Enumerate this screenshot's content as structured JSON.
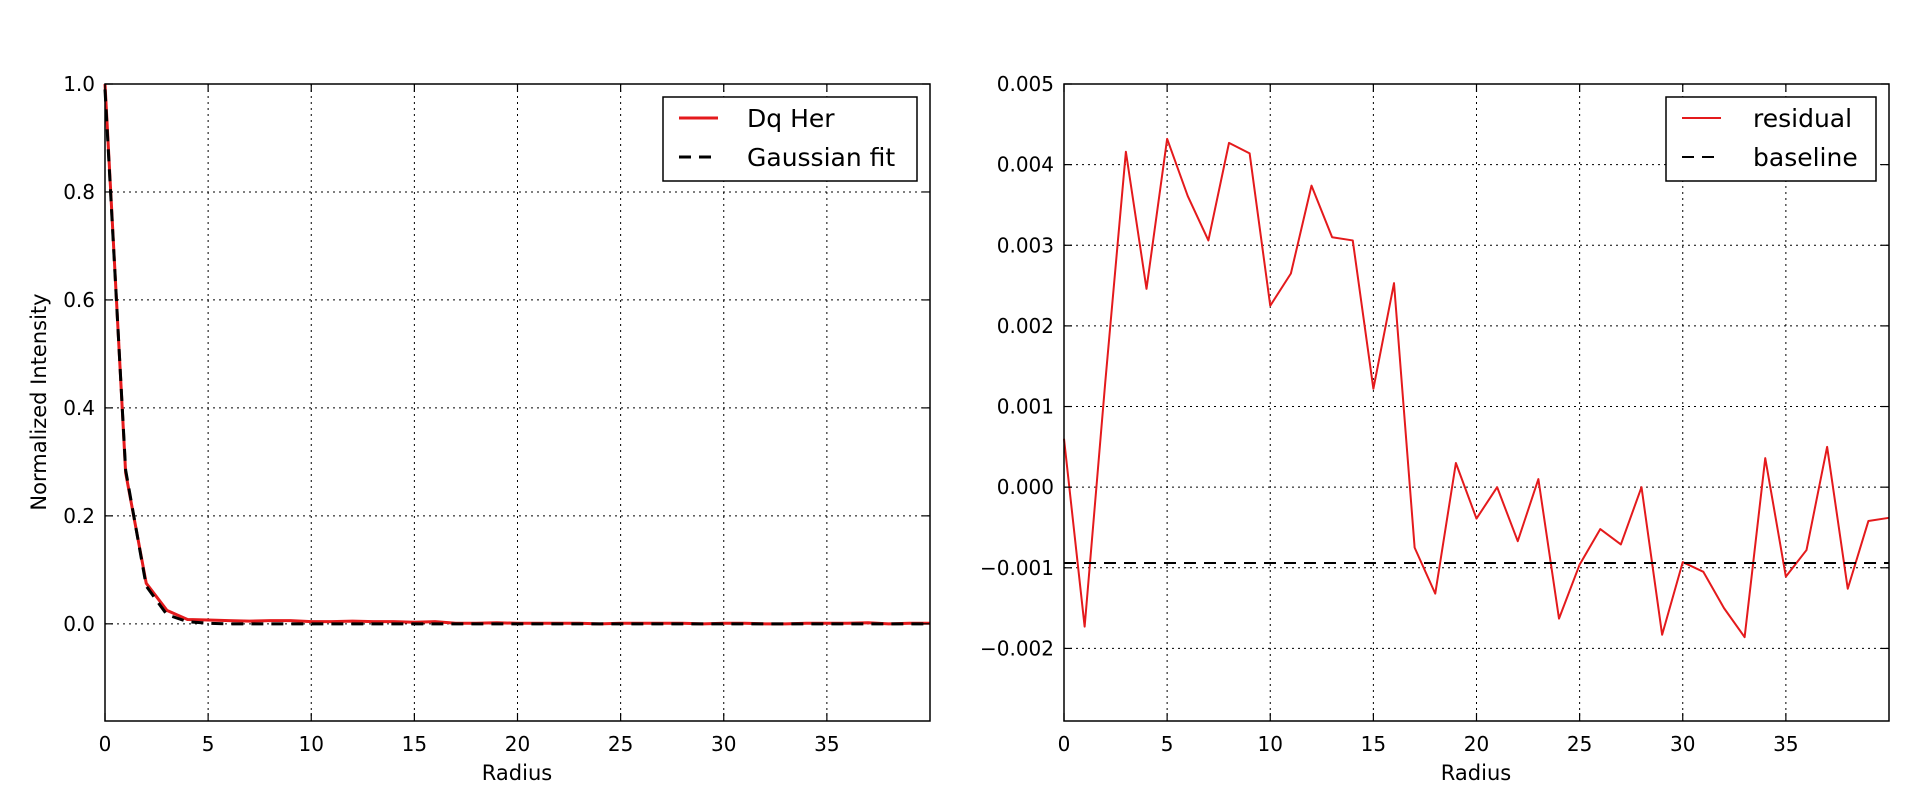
{
  "chart_data": [
    {
      "type": "line",
      "xlabel": "Radius",
      "ylabel": "Normalized Intensity",
      "xlim": [
        0,
        40
      ],
      "ylim": [
        -0.18,
        1.0
      ],
      "grid": true,
      "legend_position": "top-right",
      "x_ticks": [
        0,
        5,
        10,
        15,
        20,
        25,
        30,
        35
      ],
      "x_tick_labels": [
        "0",
        "5",
        "10",
        "15",
        "20",
        "25",
        "30",
        "35"
      ],
      "y_ticks": [
        0.0,
        0.2,
        0.4,
        0.6,
        0.8,
        1.0
      ],
      "y_tick_labels": [
        "0.0",
        "0.2",
        "0.4",
        "0.6",
        "0.8",
        "1.0"
      ],
      "series": [
        {
          "name": "Dq Her",
          "color": "#e41a1c",
          "style": "solid",
          "x": [
            0,
            1,
            2,
            3,
            4,
            5,
            6,
            7,
            8,
            9,
            10,
            11,
            12,
            13,
            14,
            15,
            16,
            17,
            18,
            19,
            20,
            21,
            22,
            23,
            24,
            25,
            26,
            27,
            28,
            29,
            30,
            31,
            32,
            33,
            34,
            35,
            36,
            37,
            38,
            39,
            40
          ],
          "y": [
            1.0,
            0.28,
            0.075,
            0.025,
            0.008,
            0.007,
            0.006,
            0.005,
            0.006,
            0.006,
            0.004,
            0.004,
            0.005,
            0.004,
            0.004,
            0.003,
            0.004,
            0.001,
            0.001,
            0.002,
            0.001,
            0.001,
            0.001,
            0.001,
            0.0,
            0.001,
            0.001,
            0.001,
            0.001,
            0.0,
            0.001,
            0.001,
            0.0,
            0.0,
            0.001,
            0.001,
            0.001,
            0.002,
            0.0,
            0.001,
            0.001
          ]
        },
        {
          "name": "Gaussian fit",
          "color": "#000000",
          "style": "dashed",
          "x": [
            0,
            1,
            2,
            3,
            4,
            5,
            6,
            7,
            8,
            9,
            10,
            11,
            12,
            13,
            14,
            15,
            16,
            17,
            18,
            19,
            20,
            21,
            22,
            23,
            24,
            25,
            26,
            27,
            28,
            29,
            30,
            31,
            32,
            33,
            34,
            35,
            36,
            37,
            38,
            39,
            40
          ],
          "y": [
            0.99,
            0.285,
            0.07,
            0.017,
            0.004,
            0.001,
            0.0,
            0.0,
            0.0,
            0.0,
            0.0,
            0.0,
            0.0,
            0.0,
            0.0,
            0.0,
            0.0,
            0.0,
            0.0,
            0.0,
            0.0,
            0.0,
            0.0,
            0.0,
            0.0,
            0.0,
            0.0,
            0.0,
            0.0,
            0.0,
            0.0,
            0.0,
            0.0,
            0.0,
            0.0,
            0.0,
            0.0,
            0.0,
            0.0,
            0.0,
            0.0
          ]
        }
      ]
    },
    {
      "type": "line",
      "xlabel": "Radius",
      "ylabel": "",
      "xlim": [
        0,
        40
      ],
      "ylim": [
        -0.0029,
        0.005
      ],
      "grid": true,
      "legend_position": "top-right",
      "x_ticks": [
        0,
        5,
        10,
        15,
        20,
        25,
        30,
        35
      ],
      "x_tick_labels": [
        "0",
        "5",
        "10",
        "15",
        "20",
        "25",
        "30",
        "35"
      ],
      "y_ticks": [
        -0.002,
        -0.001,
        0.0,
        0.001,
        0.002,
        0.003,
        0.004,
        0.005
      ],
      "y_tick_labels": [
        "−0.002",
        "−0.001",
        "0.000",
        "0.001",
        "0.002",
        "0.003",
        "0.004",
        "0.005"
      ],
      "series": [
        {
          "name": "residual",
          "color": "#e41a1c",
          "style": "solid",
          "x": [
            0,
            1,
            2,
            3,
            4,
            5,
            6,
            7,
            8,
            9,
            10,
            11,
            12,
            13,
            14,
            15,
            16,
            17,
            18,
            19,
            20,
            21,
            22,
            23,
            24,
            25,
            26,
            27,
            28,
            29,
            30,
            31,
            32,
            33,
            34,
            35,
            36,
            37,
            38,
            39,
            40
          ],
          "y": [
            0.0006,
            -0.00173,
            0.0013,
            0.00416,
            0.00246,
            0.00432,
            0.00361,
            0.00306,
            0.00427,
            0.00414,
            0.00225,
            0.00265,
            0.00374,
            0.0031,
            0.00306,
            0.00122,
            0.00253,
            -0.00075,
            -0.00132,
            0.0003,
            -0.00039,
            0.0,
            -0.00067,
            0.0001,
            -0.00163,
            -0.00096,
            -0.00052,
            -0.00071,
            0.0,
            -0.00183,
            -0.00093,
            -0.00105,
            -0.0015,
            -0.00186,
            0.00036,
            -0.00111,
            -0.00078,
            0.0005,
            -0.00126,
            -0.00042,
            -0.00038
          ]
        },
        {
          "name": "baseline",
          "color": "#000000",
          "style": "dashed",
          "x": [
            0,
            40
          ],
          "y": [
            -0.00094,
            -0.00094
          ]
        }
      ]
    }
  ]
}
